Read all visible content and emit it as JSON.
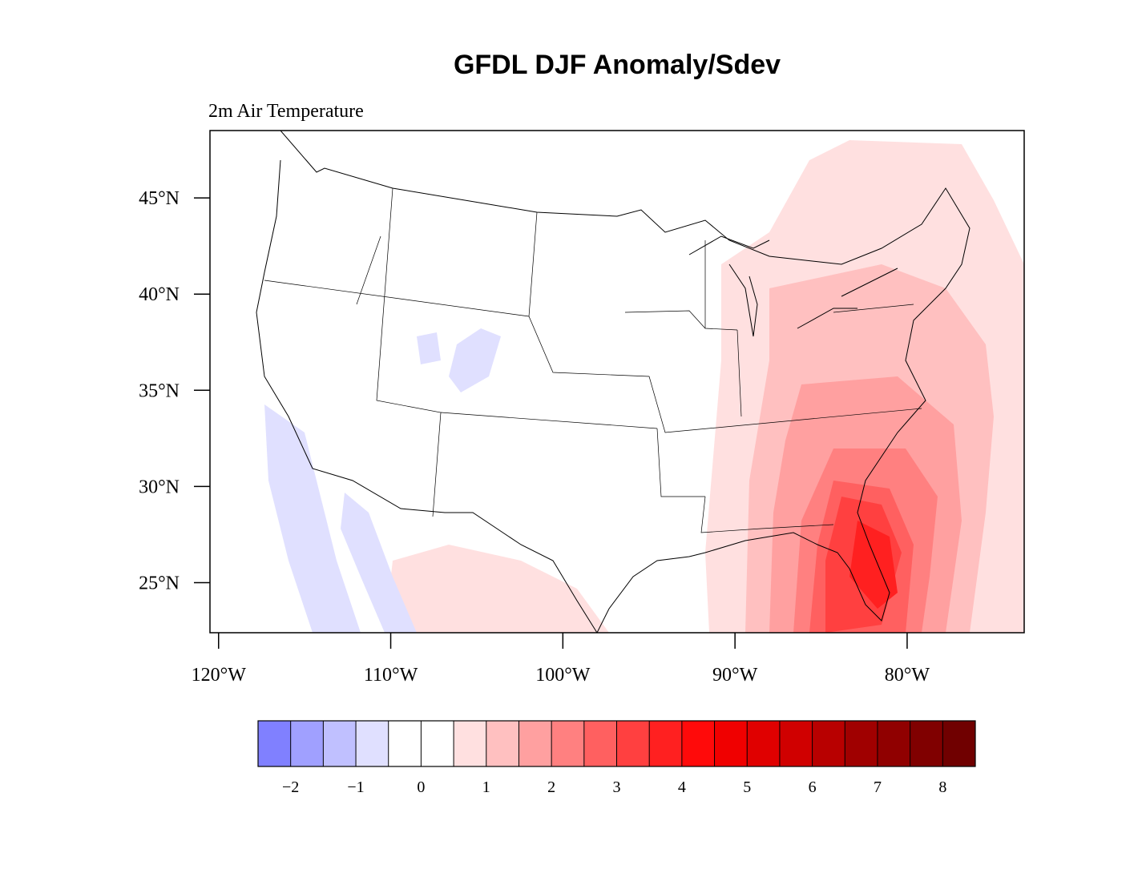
{
  "title": "GFDL DJF Anomaly/Sdev",
  "subtitle": "2m Air Temperature",
  "map": {
    "xlim": [
      -120.5,
      -73.2
    ],
    "ylim": [
      22.4,
      48.5
    ],
    "xticks": [
      {
        "value": -120,
        "label": "120°W"
      },
      {
        "value": -110,
        "label": "110°W"
      },
      {
        "value": -100,
        "label": "100°W"
      },
      {
        "value": -90,
        "label": "90°W"
      },
      {
        "value": -80,
        "label": "80°W"
      }
    ],
    "yticks": [
      {
        "value": 25,
        "label": "25°N"
      },
      {
        "value": 30,
        "label": "30°N"
      },
      {
        "value": 35,
        "label": "35°N"
      },
      {
        "value": 40,
        "label": "40°N"
      },
      {
        "value": 45,
        "label": "45°N"
      }
    ]
  },
  "colorbar": {
    "levels": [
      -2,
      -1.5,
      -1,
      -0.5,
      0,
      0.5,
      1,
      1.5,
      2,
      2.5,
      3,
      3.5,
      4,
      4.5,
      5,
      5.5,
      6,
      6.5,
      7,
      7.5,
      8
    ],
    "colors": [
      "#8080ff",
      "#a0a0ff",
      "#c0c0ff",
      "#e0e0ff",
      "#ffffff",
      "#ffffff",
      "#ffe0e0",
      "#ffc0c0",
      "#ffa0a0",
      "#ff8080",
      "#ff6060",
      "#ff4040",
      "#ff2020",
      "#ff0a0a",
      "#f00000",
      "#e00000",
      "#d00000",
      "#b80000",
      "#a00000",
      "#900000",
      "#800000",
      "#700000"
    ],
    "ticks": [
      {
        "value": -2,
        "label": "−2"
      },
      {
        "value": -1,
        "label": "−1"
      },
      0,
      1,
      2,
      3,
      4,
      5,
      6,
      7,
      8
    ]
  }
}
